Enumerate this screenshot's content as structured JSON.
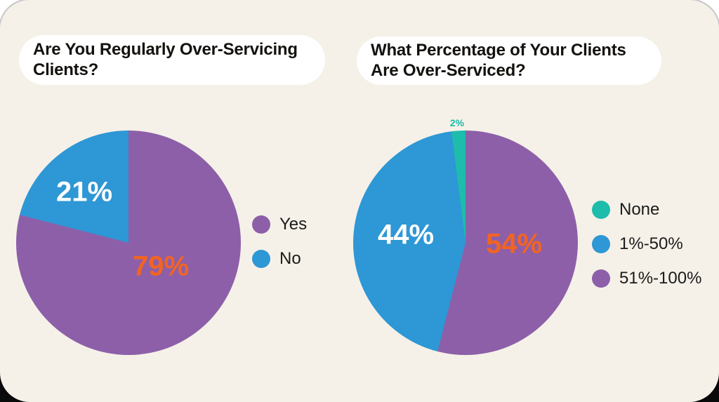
{
  "canvas": {
    "background": "#f5f1e8",
    "page_background": "#ffffff",
    "bottom_edge_color": "#0a0a0a",
    "title_text_color": "#14120e",
    "legend_text_color": "#1b1b1b"
  },
  "chart_data": [
    {
      "type": "pie",
      "title": "Are You Regularly Over-Servicing Clients?",
      "title_lines": [
        "Are You Regularly Over-Servicing",
        "Clients?"
      ],
      "start_angle_deg": 0,
      "direction": "clockwise",
      "legend_position": "right",
      "slices": [
        {
          "label": "Yes",
          "value": 79,
          "color": "#8d5fa9",
          "value_label": "79%",
          "value_label_color": "#f26422"
        },
        {
          "label": "No",
          "value": 21,
          "color": "#2e97d5",
          "value_label": "21%",
          "value_label_color": "#ffffff"
        }
      ],
      "legend": [
        {
          "label": "Yes",
          "color": "#8d5fa9"
        },
        {
          "label": "No",
          "color": "#2e97d5"
        }
      ]
    },
    {
      "type": "pie",
      "title": "What Percentage of Your Clients Are Over-Serviced?",
      "title_lines": [
        "What Percentage of Your Clients",
        "Are Over-Serviced?"
      ],
      "start_angle_deg": 0,
      "direction": "clockwise",
      "legend_position": "right",
      "slices": [
        {
          "label": "51%-100%",
          "value": 54,
          "color": "#8d5fa9",
          "value_label": "54%",
          "value_label_color": "#f26422"
        },
        {
          "label": "1%-50%",
          "value": 44,
          "color": "#2e97d5",
          "value_label": "44%",
          "value_label_color": "#ffffff"
        },
        {
          "label": "None",
          "value": 2,
          "color": "#1dbcab",
          "value_label": "2%",
          "value_label_color": "#1dbcab"
        }
      ],
      "legend": [
        {
          "label": "None",
          "color": "#1dbcab"
        },
        {
          "label": "1%-50%",
          "color": "#2e97d5"
        },
        {
          "label": "51%-100%",
          "color": "#8d5fa9"
        }
      ]
    }
  ]
}
